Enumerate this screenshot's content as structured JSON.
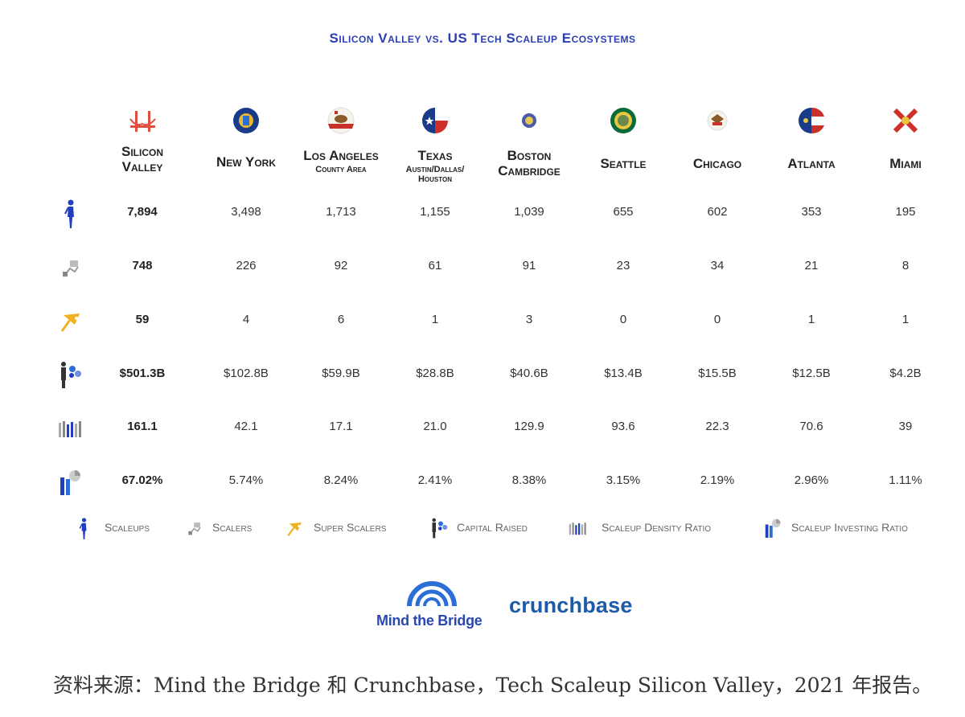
{
  "chart_data": {
    "type": "table",
    "title": "Silicon Valley vs. US Tech Scaleup Ecosystems",
    "columns": [
      {
        "name": "Silicon",
        "name2": "Valley",
        "sub": "",
        "icon": "golden-gate-bridge-icon"
      },
      {
        "name": "New York",
        "name2": "",
        "sub": "",
        "icon": "new-york-seal-icon"
      },
      {
        "name": "Los Angeles",
        "name2": "",
        "sub": "County Area",
        "icon": "california-flag-icon"
      },
      {
        "name": "Texas",
        "name2": "",
        "sub": "Austin/Dallas/ Houston",
        "icon": "texas-flag-icon"
      },
      {
        "name": "Boston",
        "name2": "Cambridge",
        "sub": "",
        "icon": "massachusetts-seal-icon"
      },
      {
        "name": "Seattle",
        "name2": "",
        "sub": "",
        "icon": "washington-seal-icon"
      },
      {
        "name": "Chicago",
        "name2": "",
        "sub": "",
        "icon": "illinois-flag-icon"
      },
      {
        "name": "Atlanta",
        "name2": "",
        "sub": "",
        "icon": "georgia-flag-icon"
      },
      {
        "name": "Miami",
        "name2": "",
        "sub": "",
        "icon": "florida-flag-icon"
      }
    ],
    "rows": [
      {
        "metric": "Scaleups",
        "icon": "scaleups-person-icon",
        "values": [
          "7,894",
          "3,498",
          "1,713",
          "1,155",
          "1,039",
          "655",
          "602",
          "353",
          "195"
        ]
      },
      {
        "metric": "Scalers",
        "icon": "scalers-icon",
        "values": [
          "748",
          "226",
          "92",
          "61",
          "91",
          "23",
          "34",
          "21",
          "8"
        ]
      },
      {
        "metric": "Super Scalers",
        "icon": "super-scalers-icon",
        "values": [
          "59",
          "4",
          "6",
          "1",
          "3",
          "0",
          "0",
          "1",
          "1"
        ]
      },
      {
        "metric": "Capital Raised",
        "icon": "capital-raised-icon",
        "values": [
          "$501.3B",
          "$102.8B",
          "$59.9B",
          "$28.8B",
          "$40.6B",
          "$13.4B",
          "$15.5B",
          "$12.5B",
          "$4.2B"
        ]
      },
      {
        "metric": "Scaleup Density Ratio",
        "icon": "density-ratio-icon",
        "values": [
          "161.1",
          "42.1",
          "17.1",
          "21.0",
          "129.9",
          "93.6",
          "22.3",
          "70.6",
          "39"
        ]
      },
      {
        "metric": "Scaleup Investing Ratio",
        "icon": "investing-ratio-icon",
        "values": [
          "67.02%",
          "5.74%",
          "8.24%",
          "2.41%",
          "8.38%",
          "3.15%",
          "2.19%",
          "2.96%",
          "1.11%"
        ]
      }
    ]
  },
  "legend": [
    {
      "label": "Scaleups"
    },
    {
      "label": "Scalers"
    },
    {
      "label": "Super Scalers"
    },
    {
      "label": "Capital Raised"
    },
    {
      "label": "Scaleup Density Ratio"
    },
    {
      "label": "Scaleup Investing Ratio"
    }
  ],
  "logos": {
    "mind_the_bridge": "Mind the Bridge",
    "crunchbase": "crunchbase"
  },
  "source_text": "资料来源：Mind the Bridge 和 Crunchbase，Tech Scaleup Silicon Valley，2021 年报告。",
  "colors": {
    "title": "#2b3fb5",
    "person_blue": "#1f3fbf",
    "gold": "#f0b020",
    "mtb_blue": "#2b48b0",
    "crunchbase_blue": "#1d5aa8"
  }
}
